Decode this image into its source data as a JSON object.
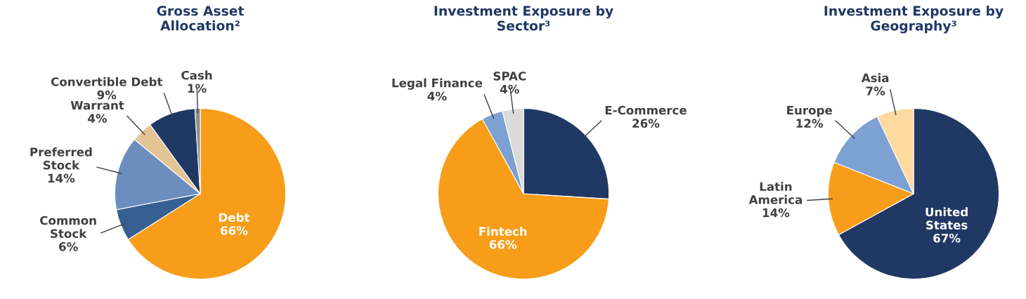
{
  "chart_data": [
    {
      "type": "pie",
      "title": "Gross Asset Allocation²",
      "categories": [
        "Debt",
        "Common Stock",
        "Preferred Stock",
        "Warrant",
        "Convertible Debt",
        "Cash"
      ],
      "values": [
        66,
        6,
        14,
        4,
        9,
        1
      ],
      "value_labels": [
        "66%",
        "6%",
        "14%",
        "4%",
        "9%",
        "1%"
      ],
      "colors": [
        "#f79d1a",
        "#375f91",
        "#6c8ebf",
        "#e3c495",
        "#203864",
        "#8c8c8c"
      ],
      "legend": false
    },
    {
      "type": "pie",
      "title": "Investment Exposure by Sector³",
      "categories": [
        "E-Commerce",
        "Fintech",
        "Legal Finance",
        "SPAC"
      ],
      "values": [
        26,
        66,
        4,
        4
      ],
      "value_labels": [
        "26%",
        "66%",
        "4%",
        "4%"
      ],
      "colors": [
        "#203864",
        "#f79d1a",
        "#7ca1d2",
        "#dadada"
      ],
      "legend": false
    },
    {
      "type": "pie",
      "title": "Investment Exposure by Geography³",
      "categories": [
        "United States",
        "Latin America",
        "Europe",
        "Asia"
      ],
      "values": [
        67,
        14,
        12,
        7
      ],
      "value_labels": [
        "67%",
        "14%",
        "12%",
        "7%"
      ],
      "colors": [
        "#203864",
        "#f79d1a",
        "#7ca1d2",
        "#fed9a0"
      ],
      "legend": false
    }
  ]
}
